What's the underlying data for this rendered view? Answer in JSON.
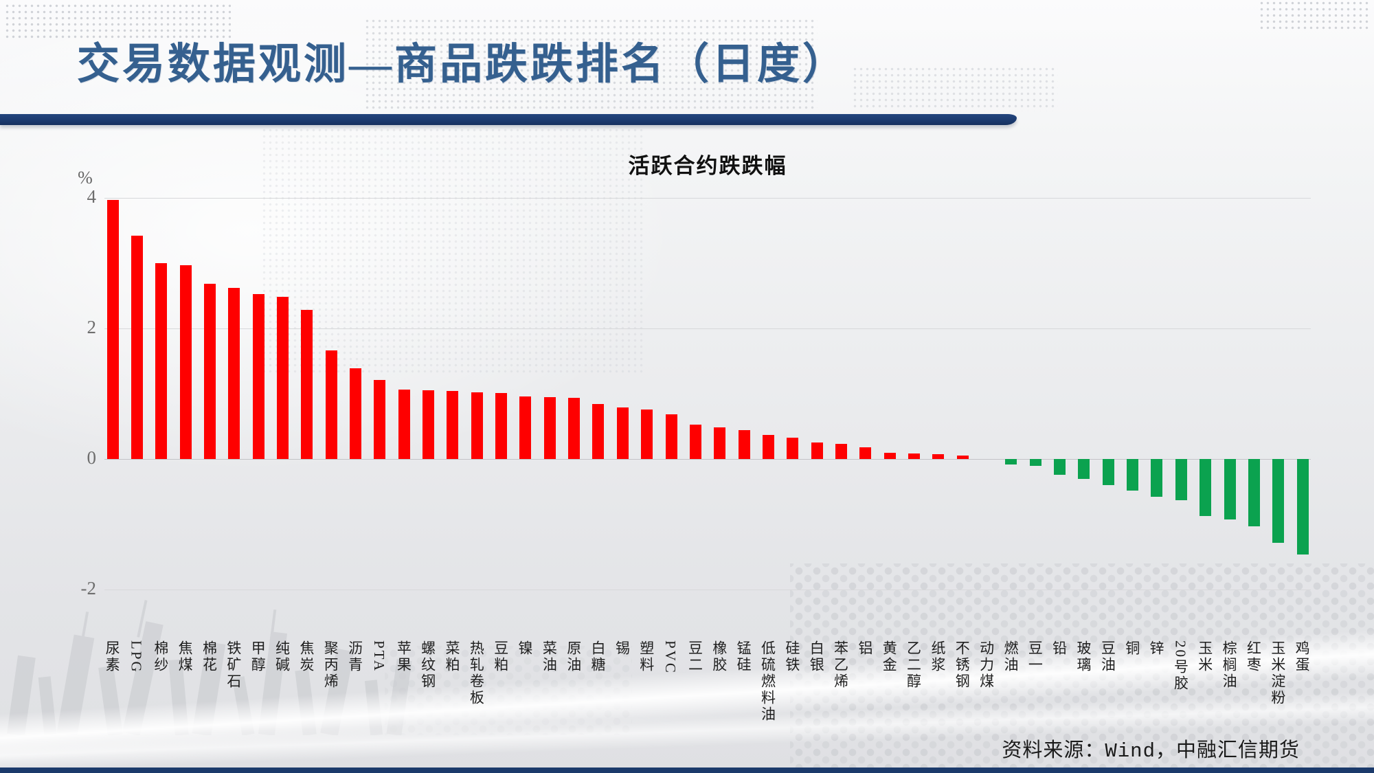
{
  "slide": {
    "title": "交易数据观测—商品跌跌排名（日度）",
    "source_note": "资料来源：Wind，中融汇信期货"
  },
  "colors": {
    "title_blue": "#35608F",
    "band_navy": "#1B3A6E",
    "positive_bar": "#FE0000",
    "negative_bar": "#0BA24F",
    "gridline": "#D7D8DA",
    "tick_text": "#6E6E6E"
  },
  "chart_data": {
    "type": "bar",
    "title": "活跃合约跌跌幅",
    "unit_label": "%",
    "xlabel": "",
    "ylabel": "%",
    "ylim": [
      -2,
      4
    ],
    "grid": true,
    "legend_position": "none",
    "yticks": [
      {
        "label": "4",
        "value": 4
      },
      {
        "label": "2",
        "value": 2
      },
      {
        "label": "0",
        "value": 0
      },
      {
        "label": "-2",
        "value": -2
      }
    ],
    "categories": [
      "尿素",
      "LPG",
      "棉纱",
      "焦煤",
      "棉花",
      "铁矿石",
      "甲醇",
      "纯碱",
      "焦炭",
      "聚丙烯",
      "沥青",
      "PTA",
      "苹果",
      "螺纹钢",
      "菜粕",
      "热轧卷板",
      "豆粕",
      "镍",
      "菜油",
      "原油",
      "白糖",
      "锡",
      "塑料",
      "PVC",
      "豆二",
      "橡胶",
      "锰硅",
      "低硫燃料油",
      "硅铁",
      "白银",
      "苯乙烯",
      "铝",
      "黄金",
      "乙二醇",
      "纸浆",
      "不锈钢",
      "动力煤",
      "燃油",
      "豆一",
      "铅",
      "玻璃",
      "豆油",
      "铜",
      "锌",
      "20号胶",
      "玉米",
      "棕榈油",
      "红枣",
      "玉米淀粉",
      "鸡蛋"
    ],
    "values": [
      3.97,
      3.42,
      3.0,
      2.97,
      2.69,
      2.62,
      2.53,
      2.48,
      2.28,
      1.66,
      1.39,
      1.21,
      1.06,
      1.05,
      1.04,
      1.02,
      1.01,
      0.96,
      0.95,
      0.94,
      0.84,
      0.79,
      0.76,
      0.69,
      0.53,
      0.48,
      0.44,
      0.37,
      0.33,
      0.25,
      0.23,
      0.18,
      0.1,
      0.09,
      0.07,
      0.05,
      0.0,
      -0.08,
      -0.1,
      -0.24,
      -0.31,
      -0.4,
      -0.48,
      -0.58,
      -0.63,
      -0.87,
      -0.93,
      -1.03,
      -1.28,
      -1.46
    ]
  }
}
